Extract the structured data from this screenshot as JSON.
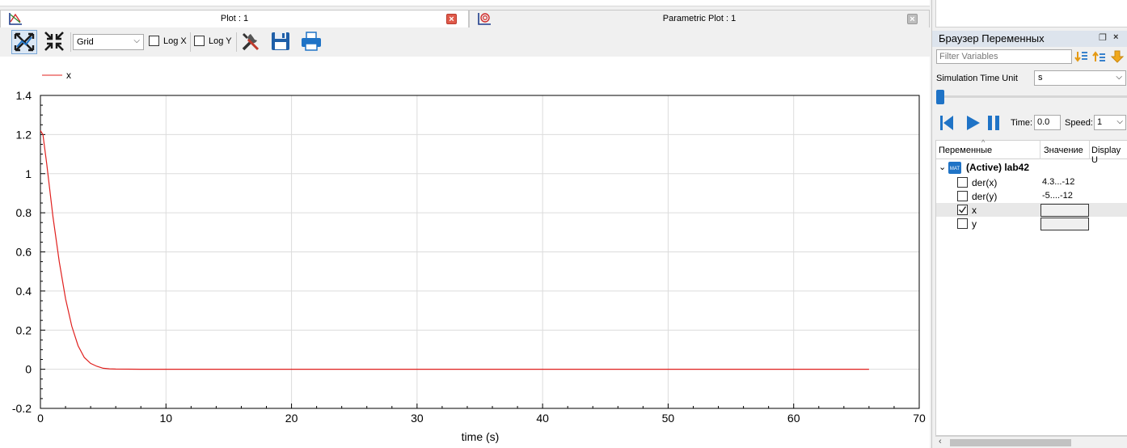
{
  "tabs": [
    {
      "label": "Plot : 1",
      "icon": "plot-icon",
      "active": true
    },
    {
      "label": "Parametric Plot : 1",
      "icon": "parametric-plot-icon",
      "active": false
    }
  ],
  "toolbar": {
    "grid_select": "Grid",
    "log_x": "Log X",
    "log_y": "Log Y"
  },
  "plot": {
    "legend": "x",
    "line_color": "#e0201e",
    "xlabel": "time (s)",
    "xlim": [
      0,
      70
    ],
    "ylim": [
      -0.2,
      1.4
    ],
    "x_ticks": [
      "0",
      "10",
      "20",
      "30",
      "40",
      "50",
      "60",
      "70"
    ],
    "y_ticks": [
      "1.4",
      "1.2",
      "1",
      "0.8",
      "0.6",
      "0.4",
      "0.2",
      "0",
      "-0.2"
    ],
    "grid": true
  },
  "chart_data": {
    "type": "line",
    "xlabel": "time (s)",
    "ylabel": "",
    "xlim": [
      0,
      70
    ],
    "ylim": [
      -0.2,
      1.4
    ],
    "grid": true,
    "legend_placement": "top-left",
    "series": [
      {
        "name": "x",
        "color": "#e0201e",
        "x": [
          0,
          0.2,
          0.5,
          1,
          1.5,
          2,
          2.5,
          3,
          3.5,
          4,
          4.5,
          5,
          5.5,
          6,
          8,
          10,
          20,
          30,
          40,
          50,
          60,
          66
        ],
        "y": [
          1.22,
          1.2,
          1.05,
          0.78,
          0.55,
          0.36,
          0.22,
          0.12,
          0.06,
          0.03,
          0.015,
          0.005,
          0.002,
          0.001,
          0,
          0,
          0,
          0,
          0,
          0,
          0,
          0
        ]
      }
    ]
  },
  "browser": {
    "title": "Браузер Переменных",
    "filter_placeholder": "Filter Variables",
    "time_unit_label": "Simulation Time Unit",
    "time_unit_value": "s",
    "time_label": "Time:",
    "time_value": "0.0",
    "speed_label": "Speed:",
    "speed_value": "1",
    "columns": [
      "Переменные",
      "Значение",
      "Display U"
    ],
    "model": "(Active) lab42",
    "variables": [
      {
        "name": "der(x)",
        "value": "4.3...-12",
        "checked": false
      },
      {
        "name": "der(y)",
        "value": "-5....-12",
        "checked": false
      },
      {
        "name": "x",
        "value": "",
        "checked": true
      },
      {
        "name": "y",
        "value": "",
        "checked": false
      }
    ]
  }
}
